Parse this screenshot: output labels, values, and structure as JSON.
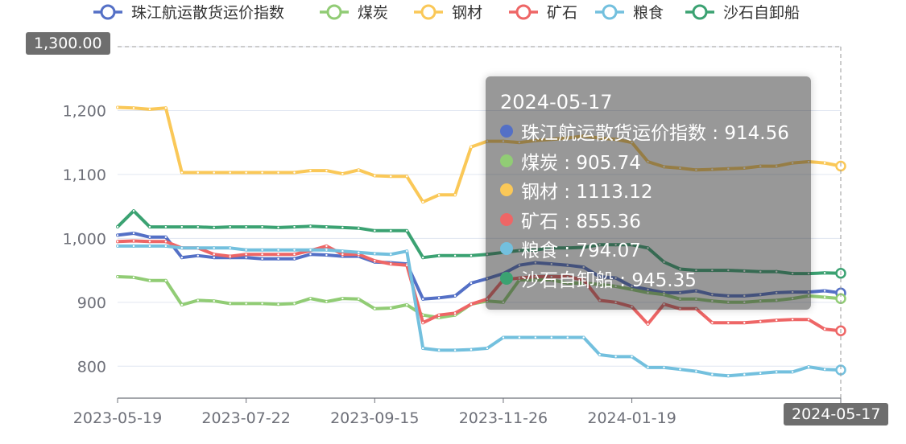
{
  "chart_data": {
    "type": "line",
    "title": "",
    "xlabel": "",
    "ylabel": "",
    "ylim": [
      750,
      1300
    ],
    "yticks": [
      800,
      900,
      1000,
      1100,
      1200,
      1300
    ],
    "ytick_labels": [
      "800",
      "900",
      "1,000",
      "1,100",
      "1,200",
      "1,300"
    ],
    "x_tick_labels": [
      "2023-05-19",
      "2023-07-22",
      "2023-09-15",
      "2023-11-26",
      "2024-01-19",
      "2024-05-17"
    ],
    "x_tick_index": [
      0,
      8,
      16,
      24,
      32,
      45
    ],
    "legend_position": "top-center",
    "grid": true,
    "x": [
      "2023-05-19",
      "2023-05-26",
      "2023-06-02",
      "2023-06-09",
      "2023-06-16",
      "2023-06-23",
      "2023-06-30",
      "2023-07-07",
      "2023-07-22",
      "2023-07-29",
      "2023-08-05",
      "2023-08-12",
      "2023-08-19",
      "2023-08-26",
      "2023-09-01",
      "2023-09-08",
      "2023-09-15",
      "2023-09-22",
      "2023-09-29",
      "2023-10-13",
      "2023-10-20",
      "2023-10-27",
      "2023-11-03",
      "2023-11-10",
      "2023-11-26",
      "2023-12-01",
      "2023-12-08",
      "2023-12-15",
      "2023-12-22",
      "2023-12-29",
      "2024-01-05",
      "2024-01-12",
      "2024-01-19",
      "2024-01-26",
      "2024-02-02",
      "2024-02-09",
      "2024-02-23",
      "2024-03-01",
      "2024-03-08",
      "2024-03-15",
      "2024-03-22",
      "2024-03-29",
      "2024-04-12",
      "2024-04-19",
      "2024-04-26",
      "2024-05-17"
    ],
    "series": [
      {
        "name": "珠江航运散货运价指数",
        "color": "#5470c6",
        "values": [
          1005,
          1008,
          1002,
          1002,
          970,
          973,
          970,
          970,
          970,
          968,
          968,
          968,
          975,
          974,
          972,
          972,
          963,
          962,
          960,
          905,
          907,
          910,
          930,
          937,
          945,
          958,
          962,
          960,
          958,
          955,
          940,
          938,
          925,
          920,
          915,
          915,
          918,
          912,
          910,
          910,
          912,
          915,
          916,
          916,
          918,
          914.56
        ]
      },
      {
        "name": "煤炭",
        "color": "#91cc75",
        "values": [
          940,
          939,
          934,
          934,
          896,
          903,
          902,
          898,
          898,
          898,
          897,
          898,
          906,
          901,
          906,
          905,
          890,
          891,
          896,
          880,
          876,
          880,
          897,
          902,
          900,
          935,
          935,
          935,
          930,
          930,
          928,
          925,
          920,
          915,
          912,
          905,
          905,
          902,
          900,
          900,
          902,
          903,
          906,
          910,
          908,
          905.74
        ]
      },
      {
        "name": "钢材",
        "color": "#fac858",
        "values": [
          1205,
          1204,
          1202,
          1204,
          1103,
          1103,
          1103,
          1103,
          1103,
          1103,
          1103,
          1103,
          1106,
          1106,
          1101,
          1107,
          1098,
          1097,
          1097,
          1057,
          1068,
          1068,
          1143,
          1152,
          1152,
          1150,
          1153,
          1155,
          1157,
          1160,
          1157,
          1155,
          1150,
          1120,
          1112,
          1110,
          1107,
          1108,
          1109,
          1110,
          1113,
          1113,
          1118,
          1120,
          1118,
          1113.12
        ]
      },
      {
        "name": "矿石",
        "color": "#ee6666",
        "values": [
          995,
          996,
          995,
          995,
          985,
          985,
          975,
          972,
          975,
          975,
          975,
          975,
          981,
          988,
          975,
          975,
          965,
          960,
          958,
          868,
          880,
          883,
          897,
          905,
          935,
          938,
          940,
          940,
          940,
          935,
          903,
          900,
          893,
          866,
          897,
          890,
          890,
          868,
          868,
          868,
          870,
          872,
          873,
          873,
          858,
          855.36
        ]
      },
      {
        "name": "粮食",
        "color": "#73c0de",
        "values": [
          988,
          988,
          988,
          988,
          985,
          985,
          985,
          985,
          982,
          982,
          982,
          982,
          982,
          982,
          980,
          978,
          976,
          975,
          980,
          828,
          825,
          825,
          826,
          828,
          845,
          845,
          845,
          845,
          845,
          845,
          818,
          815,
          815,
          798,
          798,
          795,
          792,
          787,
          785,
          787,
          789,
          791,
          791,
          799,
          795,
          794.07
        ]
      },
      {
        "name": "沙石自卸船",
        "color": "#3ba272",
        "values": [
          1018,
          1043,
          1018,
          1018,
          1018,
          1018,
          1017,
          1018,
          1018,
          1018,
          1017,
          1018,
          1019,
          1018,
          1017,
          1016,
          1012,
          1012,
          1012,
          970,
          973,
          973,
          973,
          975,
          978,
          981,
          982,
          985,
          985,
          986,
          990,
          990,
          990,
          985,
          963,
          952,
          950,
          950,
          950,
          949,
          948,
          948,
          945,
          945,
          946,
          945.35
        ]
      }
    ]
  },
  "tooltip": {
    "title": "2024-05-17",
    "rows": [
      {
        "label": "珠江航运散货运价指数 : 914.56",
        "color": "#5470c6"
      },
      {
        "label": "煤炭 : 905.74",
        "color": "#91cc75"
      },
      {
        "label": "钢材 : 1113.12",
        "color": "#fac858"
      },
      {
        "label": "矿石 : 855.36",
        "color": "#ee6666"
      },
      {
        "label": "粮食 : 794.07",
        "color": "#73c0de"
      },
      {
        "label": "沙石自卸船 : 945.35",
        "color": "#3ba272"
      }
    ]
  },
  "pointer": {
    "y_label": "1,300.00",
    "x_label": "2024-05-17"
  }
}
